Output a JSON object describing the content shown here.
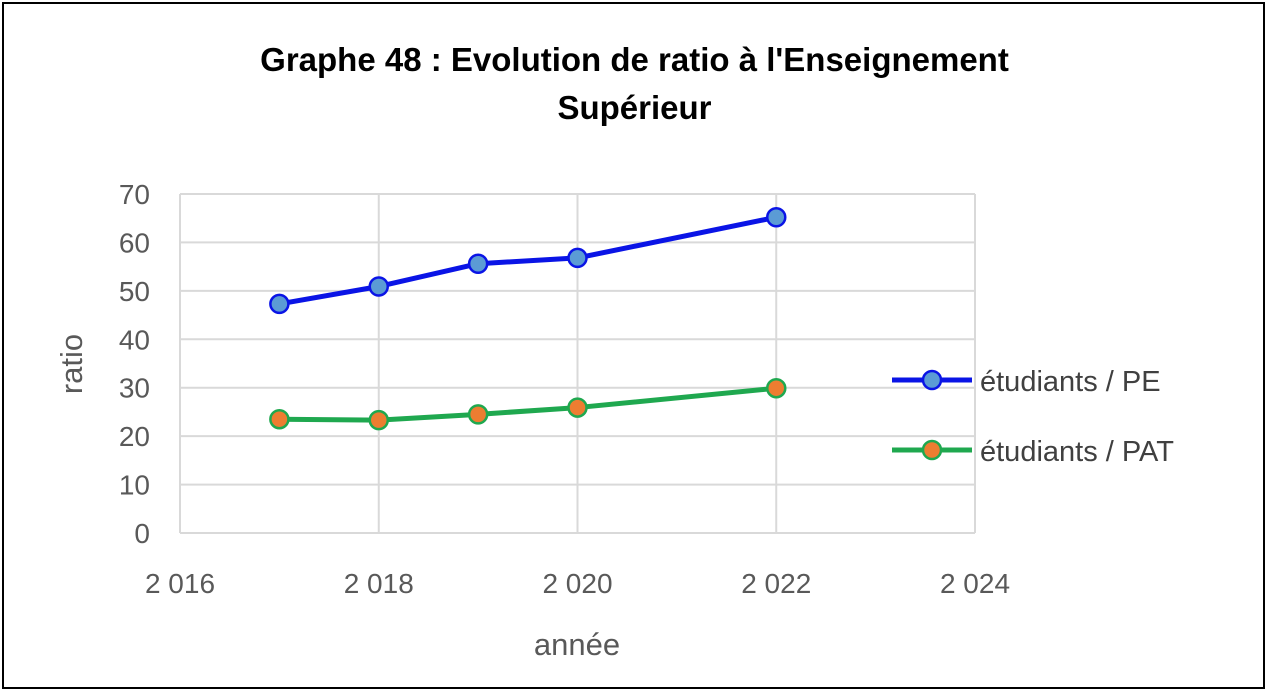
{
  "chart_data": {
    "type": "scatter",
    "title_line1": "Graphe 48 : Evolution de ratio à l'Enseignement",
    "title_line2": "Supérieur",
    "xlabel": "année",
    "ylabel": "ratio",
    "xlim": [
      2016,
      2024
    ],
    "ylim": [
      0,
      70
    ],
    "x_ticks": [
      2016,
      2018,
      2020,
      2022,
      2024
    ],
    "x_tick_labels": [
      "2 016",
      "2 018",
      "2 020",
      "2 022",
      "2 024"
    ],
    "y_ticks": [
      0,
      10,
      20,
      30,
      40,
      50,
      60,
      70
    ],
    "y_tick_labels": [
      "0",
      "10",
      "20",
      "30",
      "40",
      "50",
      "60",
      "70"
    ],
    "grid": true,
    "legend_position": "right",
    "series": [
      {
        "name": "étudiants / PE",
        "line_color": "#0a14e6",
        "marker_color": "#5b9bd5",
        "x": [
          2017,
          2018,
          2019,
          2020,
          2022
        ],
        "y": [
          47.3,
          50.9,
          55.6,
          56.8,
          65.2
        ]
      },
      {
        "name": "étudiants / PAT",
        "line_color": "#1fa84f",
        "marker_color": "#ed7d31",
        "x": [
          2017,
          2018,
          2019,
          2020,
          2022
        ],
        "y": [
          23.5,
          23.3,
          24.5,
          25.9,
          29.9
        ]
      }
    ]
  }
}
